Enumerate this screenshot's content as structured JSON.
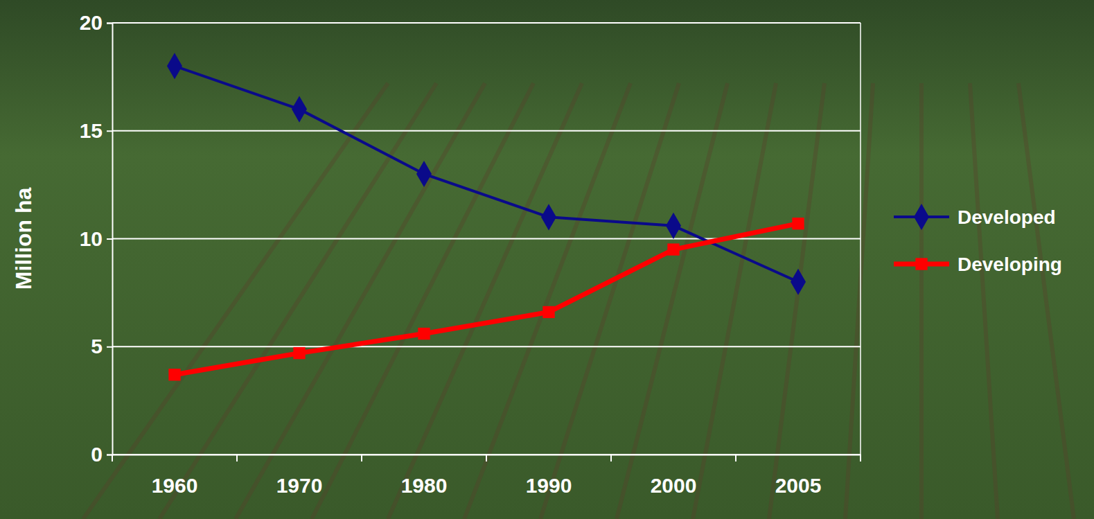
{
  "chart_data": {
    "type": "line",
    "categories": [
      "1960",
      "1970",
      "1980",
      "1990",
      "2000",
      "2005"
    ],
    "series": [
      {
        "name": "Developed",
        "color": "#0a0a8a",
        "marker": "diamond",
        "values": [
          18,
          16,
          13,
          11,
          10.6,
          8
        ]
      },
      {
        "name": "Developing",
        "color": "#ff0000",
        "marker": "square",
        "values": [
          3.7,
          4.7,
          5.6,
          6.6,
          9.5,
          10.7
        ]
      }
    ],
    "y_label": "Million ha",
    "ylim": [
      0,
      20
    ],
    "yticks": [
      0,
      5,
      10,
      15,
      20
    ],
    "grid": true,
    "legend": "right"
  }
}
